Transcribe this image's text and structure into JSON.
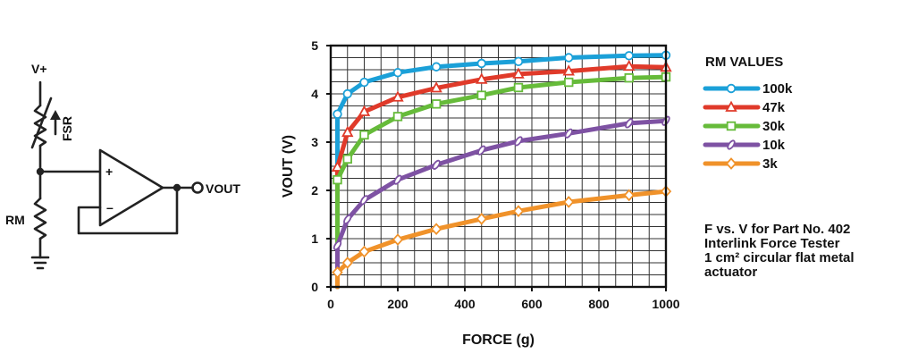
{
  "circuit": {
    "supply_label": "V+",
    "sensor_label": "FSR",
    "resistor_label": "RM",
    "output_label": "VOUT",
    "plus_sign": "+",
    "minus_sign": "–"
  },
  "note": {
    "lines": [
      "F vs. V for Part No. 402",
      "Interlink Force Tester",
      "1 cm² circular flat metal",
      "actuator"
    ]
  },
  "chart_data": {
    "type": "line",
    "xlabel": "FORCE (g)",
    "ylabel": "VOUT (V)",
    "xlim": [
      0,
      1000
    ],
    "ylim": [
      0,
      5
    ],
    "x_ticks": [
      0,
      200,
      400,
      600,
      800,
      1000
    ],
    "y_ticks": [
      0,
      1,
      2,
      3,
      4,
      5
    ],
    "grid": true,
    "legend_title": "RM VALUES",
    "legend_position": "right",
    "series": [
      {
        "name": "100k",
        "color": "#1ba0d8",
        "marker": "circle",
        "x": [
          20,
          20,
          50,
          100,
          200,
          315,
          450,
          560,
          710,
          890,
          1000
        ],
        "y": [
          0,
          3.58,
          4.0,
          4.24,
          4.44,
          4.56,
          4.63,
          4.67,
          4.75,
          4.79,
          4.8
        ]
      },
      {
        "name": "47k",
        "color": "#e03a2a",
        "marker": "triangle",
        "x": [
          20,
          20,
          50,
          100,
          200,
          315,
          450,
          560,
          710,
          890,
          1000
        ],
        "y": [
          0,
          2.48,
          3.2,
          3.63,
          3.93,
          4.12,
          4.3,
          4.41,
          4.47,
          4.57,
          4.55
        ]
      },
      {
        "name": "30k",
        "color": "#66bb3a",
        "marker": "square",
        "x": [
          20,
          20,
          50,
          100,
          200,
          315,
          450,
          560,
          710,
          890,
          1000
        ],
        "y": [
          0,
          2.22,
          2.65,
          3.15,
          3.53,
          3.79,
          3.97,
          4.13,
          4.24,
          4.33,
          4.35
        ]
      },
      {
        "name": "10k",
        "color": "#7e52a3",
        "marker": "ellipse",
        "x": [
          20,
          20,
          50,
          100,
          200,
          315,
          450,
          560,
          710,
          890,
          1000
        ],
        "y": [
          0,
          0.86,
          1.4,
          1.8,
          2.22,
          2.53,
          2.83,
          3.02,
          3.18,
          3.39,
          3.44
        ]
      },
      {
        "name": "3k",
        "color": "#f0922a",
        "marker": "diamond",
        "x": [
          20,
          20,
          50,
          100,
          200,
          315,
          450,
          560,
          710,
          890,
          1000
        ],
        "y": [
          0,
          0.3,
          0.5,
          0.73,
          0.98,
          1.2,
          1.41,
          1.57,
          1.76,
          1.9,
          1.98
        ]
      }
    ]
  }
}
